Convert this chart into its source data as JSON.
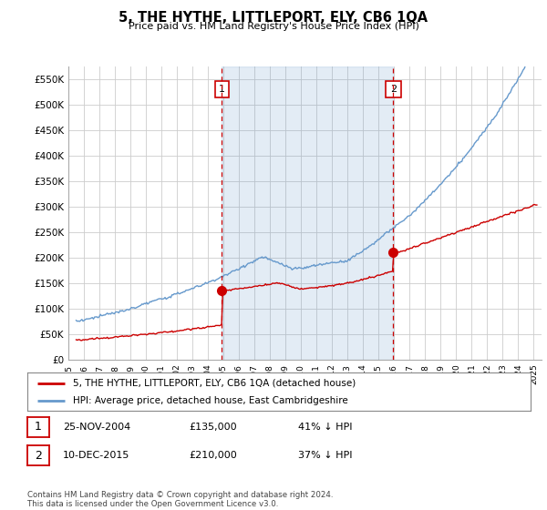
{
  "title": "5, THE HYTHE, LITTLEPORT, ELY, CB6 1QA",
  "subtitle": "Price paid vs. HM Land Registry's House Price Index (HPI)",
  "ytick_values": [
    0,
    50000,
    100000,
    150000,
    200000,
    250000,
    300000,
    350000,
    400000,
    450000,
    500000,
    550000
  ],
  "ylim": [
    0,
    575000
  ],
  "sale1_date": 2004.9,
  "sale1_price": 135000,
  "sale1_label": "1",
  "sale2_date": 2015.95,
  "sale2_price": 210000,
  "sale2_label": "2",
  "legend_red": "5, THE HYTHE, LITTLEPORT, ELY, CB6 1QA (detached house)",
  "legend_blue": "HPI: Average price, detached house, East Cambridgeshire",
  "table_row1": [
    "1",
    "25-NOV-2004",
    "£135,000",
    "41% ↓ HPI"
  ],
  "table_row2": [
    "2",
    "10-DEC-2015",
    "£210,000",
    "37% ↓ HPI"
  ],
  "footer": "Contains HM Land Registry data © Crown copyright and database right 2024.\nThis data is licensed under the Open Government Licence v3.0.",
  "red_color": "#cc0000",
  "blue_color": "#6699cc",
  "fill_color": "#ddeeff",
  "grid_color": "#cccccc",
  "background_color": "#ffffff",
  "xlim_start": 1995,
  "xlim_end": 2025.5
}
